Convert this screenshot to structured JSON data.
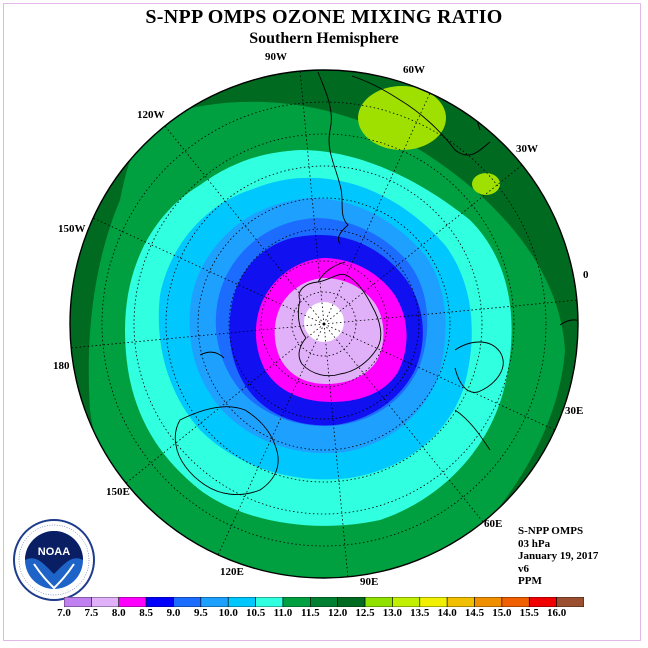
{
  "title": "S-NPP OMPS OZONE MIXING RATIO",
  "subtitle": "Southern Hemisphere",
  "longitude_labels": {
    "lon_0": "0",
    "lon_30w": "30W",
    "lon_60w": "60W",
    "lon_90w": "90W",
    "lon_120w": "120W",
    "lon_150w": "150W",
    "lon_180": "180",
    "lon_150e": "150E",
    "lon_120e": "120E",
    "lon_90e": "90E",
    "lon_60e": "60E",
    "lon_30e": "30E"
  },
  "info": {
    "instrument": "S-NPP OMPS",
    "level": "03 hPa",
    "date": "January 19, 2017",
    "version": "v6",
    "units": "PPM"
  },
  "logo": {
    "text": "NOAA"
  },
  "colorbar": {
    "labels": [
      "7.0",
      "7.5",
      "8.0",
      "8.5",
      "9.0",
      "9.5",
      "10.0",
      "10.5",
      "11.0",
      "11.5",
      "12.0",
      "12.5",
      "13.0",
      "13.5",
      "14.0",
      "14.5",
      "15.0",
      "15.5",
      "16.0"
    ],
    "colors": [
      "#c080f0",
      "#e0b0f8",
      "#ff00ff",
      "#0000ff",
      "#1c6cff",
      "#1ea0ff",
      "#00c8ff",
      "#30ffe0",
      "#00a040",
      "#008030",
      "#006a20",
      "#90e000",
      "#c0f000",
      "#f0f000",
      "#f0c000",
      "#f09000",
      "#f06000",
      "#f00000",
      "#9a5030"
    ]
  },
  "map_colors": {
    "center_white": "#ffffff",
    "lavender": "#e0b0f8",
    "magenta": "#ff00ff",
    "blue": "#1010f0",
    "medium_blue": "#1c6cff",
    "dodger": "#1ea0ff",
    "sky": "#00c8ff",
    "aqua": "#30ffe0",
    "green": "#00a040",
    "dark_green": "#006a20",
    "yellow_green": "#a0e000"
  }
}
